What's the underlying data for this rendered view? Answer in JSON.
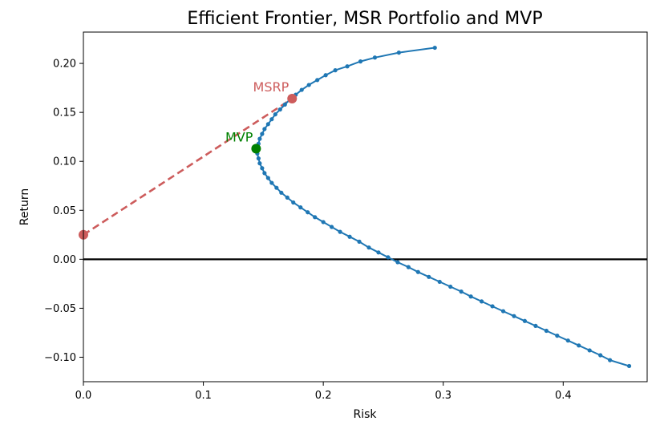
{
  "chart_data": {
    "type": "line",
    "title": "Efficient Frontier, MSR Portfolio and MVP",
    "xlabel": "Risk",
    "ylabel": "Return",
    "xlim": [
      0.0,
      0.47
    ],
    "ylim": [
      -0.125,
      0.232
    ],
    "x_ticks": [
      0.0,
      0.1,
      0.2,
      0.3,
      0.4
    ],
    "x_tick_labels": [
      "0.0",
      "0.1",
      "0.2",
      "0.3",
      "0.4"
    ],
    "y_ticks": [
      -0.1,
      -0.05,
      0.0,
      0.05,
      0.1,
      0.15,
      0.2
    ],
    "y_tick_labels": [
      "−0.10",
      "−0.05",
      "0.00",
      "0.05",
      "0.10",
      "0.15",
      "0.20"
    ],
    "grid": false,
    "zero_line": {
      "y": 0.0,
      "color": "#000000"
    },
    "series": [
      {
        "color": "#1f77b4",
        "marker": "dot",
        "points": [
          [
            0.293,
            0.216
          ],
          [
            0.263,
            0.211
          ],
          [
            0.243,
            0.206
          ],
          [
            0.231,
            0.202
          ],
          [
            0.22,
            0.197
          ],
          [
            0.21,
            0.193
          ],
          [
            0.202,
            0.188
          ],
          [
            0.195,
            0.183
          ],
          [
            0.188,
            0.178
          ],
          [
            0.182,
            0.173
          ],
          [
            0.177,
            0.168
          ],
          [
            0.172,
            0.163
          ],
          [
            0.168,
            0.158
          ],
          [
            0.164,
            0.153
          ],
          [
            0.16,
            0.148
          ],
          [
            0.157,
            0.143
          ],
          [
            0.154,
            0.138
          ],
          [
            0.151,
            0.133
          ],
          [
            0.149,
            0.128
          ],
          [
            0.147,
            0.123
          ],
          [
            0.146,
            0.118
          ],
          [
            0.145,
            0.113
          ],
          [
            0.145,
            0.108
          ],
          [
            0.146,
            0.103
          ],
          [
            0.147,
            0.098
          ],
          [
            0.149,
            0.093
          ],
          [
            0.151,
            0.088
          ],
          [
            0.154,
            0.083
          ],
          [
            0.157,
            0.078
          ],
          [
            0.161,
            0.073
          ],
          [
            0.165,
            0.068
          ],
          [
            0.17,
            0.063
          ],
          [
            0.175,
            0.058
          ],
          [
            0.181,
            0.053
          ],
          [
            0.187,
            0.048
          ],
          [
            0.193,
            0.043
          ],
          [
            0.2,
            0.038
          ],
          [
            0.207,
            0.033
          ],
          [
            0.214,
            0.028
          ],
          [
            0.222,
            0.023
          ],
          [
            0.23,
            0.018
          ],
          [
            0.238,
            0.012
          ],
          [
            0.246,
            0.007
          ],
          [
            0.254,
            0.002
          ],
          [
            0.262,
            -0.003
          ],
          [
            0.271,
            -0.008
          ],
          [
            0.279,
            -0.013
          ],
          [
            0.288,
            -0.018
          ],
          [
            0.297,
            -0.023
          ],
          [
            0.306,
            -0.028
          ],
          [
            0.315,
            -0.033
          ],
          [
            0.323,
            -0.038
          ],
          [
            0.332,
            -0.043
          ],
          [
            0.341,
            -0.048
          ],
          [
            0.35,
            -0.053
          ],
          [
            0.359,
            -0.058
          ],
          [
            0.368,
            -0.063
          ],
          [
            0.377,
            -0.068
          ],
          [
            0.386,
            -0.073
          ],
          [
            0.395,
            -0.078
          ],
          [
            0.404,
            -0.083
          ],
          [
            0.413,
            -0.088
          ],
          [
            0.422,
            -0.093
          ],
          [
            0.431,
            -0.098
          ],
          [
            0.439,
            -0.103
          ],
          [
            0.455,
            -0.109
          ]
        ]
      }
    ],
    "cml": {
      "color": "#cd5c5c",
      "style": "dashed",
      "from": [
        0.0,
        0.025
      ],
      "to": [
        0.174,
        0.164
      ]
    },
    "markers": [
      {
        "name": "risk-free",
        "x": 0.0,
        "y": 0.025,
        "color": "#cd5c5c"
      },
      {
        "name": "msrp",
        "x": 0.174,
        "y": 0.164,
        "color": "#cd5c5c",
        "label": "MSRP",
        "label_color": "#cd5c5c"
      },
      {
        "name": "mvp",
        "x": 0.144,
        "y": 0.113,
        "color": "#008000",
        "label": "MVP",
        "label_color": "#008000"
      }
    ]
  }
}
